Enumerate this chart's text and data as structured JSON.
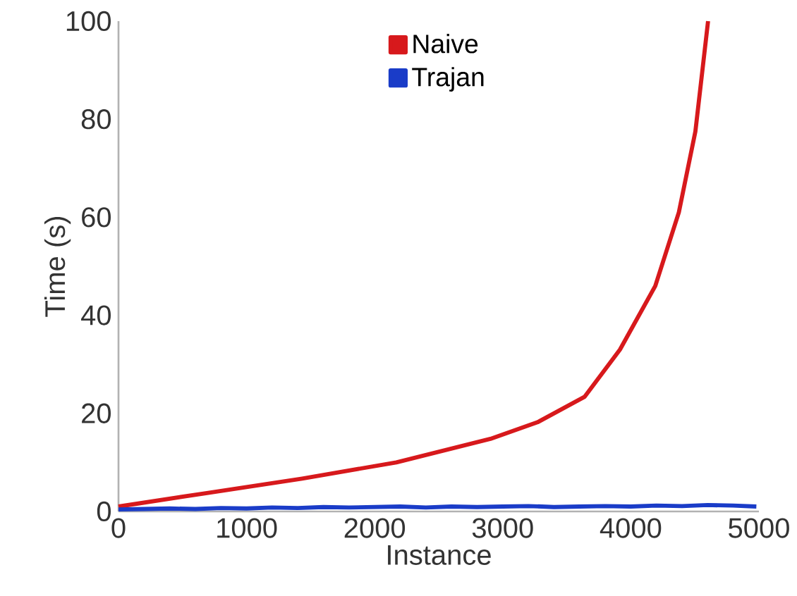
{
  "chart_data": {
    "type": "line",
    "xlabel": "Instance",
    "ylabel": "Time (s)",
    "xlim": [
      0,
      5000
    ],
    "ylim": [
      0,
      100
    ],
    "xticks": [
      0,
      1000,
      2000,
      3000,
      4000,
      5000
    ],
    "yticks": [
      0,
      20,
      40,
      60,
      80,
      100
    ],
    "legend": "top",
    "line_style": "solid",
    "series": [
      {
        "name": "Naive",
        "color": "#d7191c",
        "x": [
          0,
          700,
          1434,
          2169,
          2904,
          3272,
          3640,
          3915,
          4191,
          4375,
          4504,
          4603
        ],
        "values": [
          1.0,
          3.8,
          6.7,
          10,
          14.8,
          18.2,
          23.4,
          33,
          46,
          61,
          77.5,
          100
        ]
      },
      {
        "name": "Trajan",
        "color": "#1a3cc8",
        "x": [
          0,
          200,
          400,
          600,
          800,
          1000,
          1200,
          1400,
          1600,
          1800,
          2000,
          2200,
          2400,
          2600,
          2800,
          3000,
          3200,
          3400,
          3600,
          3800,
          4000,
          4200,
          4400,
          4600,
          4800,
          4980
        ],
        "values": [
          0.4,
          0.5,
          0.6,
          0.5,
          0.7,
          0.6,
          0.8,
          0.7,
          0.9,
          0.8,
          0.9,
          1.0,
          0.8,
          1.0,
          0.9,
          1.0,
          1.1,
          0.9,
          1.0,
          1.1,
          1.0,
          1.2,
          1.1,
          1.3,
          1.2,
          1.0
        ]
      }
    ]
  }
}
